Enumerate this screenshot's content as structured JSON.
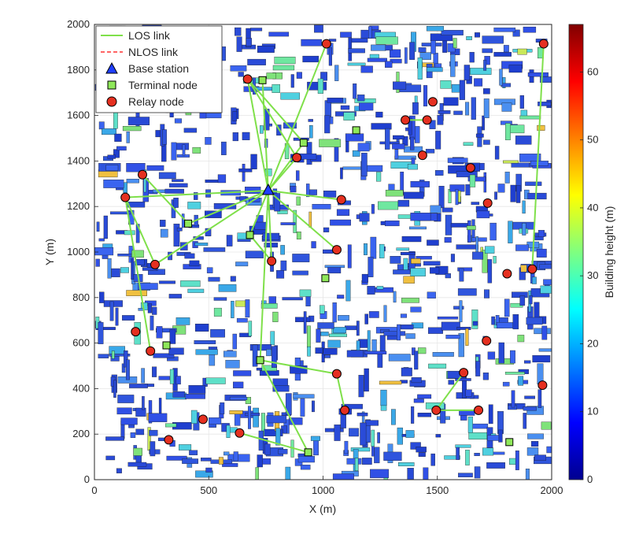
{
  "chart_data": {
    "type": "scatter",
    "xlabel": "X (m)",
    "ylabel": "Y (m)",
    "xlim": [
      0,
      2000
    ],
    "ylim": [
      0,
      2000
    ],
    "xticks": [
      "0",
      "500",
      "1000",
      "1500",
      "2000"
    ],
    "yticks": [
      "0",
      "200",
      "400",
      "600",
      "800",
      "1000",
      "1200",
      "1400",
      "1600",
      "1800",
      "2000"
    ],
    "grid": true,
    "legend_position": "top-left",
    "legend": {
      "los": "LOS link",
      "nlos": "NLOS link",
      "base": "Base station",
      "terminal": "Terminal node",
      "relay": "Relay node"
    },
    "colorbar": {
      "label": "Building height (m)",
      "ticks": [
        "0",
        "10",
        "20",
        "30",
        "40",
        "50",
        "60"
      ],
      "range": [
        0,
        67
      ],
      "colormap": "jet"
    },
    "colors": {
      "los": "#7fe04a",
      "nlos": "#ff3030",
      "base": "#1f3fff",
      "terminal": "#8fe85a",
      "relay": "#e53020"
    },
    "base_station": {
      "x": 760,
      "y": 1270
    },
    "terminal_nodes": [
      {
        "x": 735,
        "y": 1755
      },
      {
        "x": 915,
        "y": 1480
      },
      {
        "x": 1145,
        "y": 1535
      },
      {
        "x": 410,
        "y": 1125
      },
      {
        "x": 680,
        "y": 1075
      },
      {
        "x": 1010,
        "y": 885
      },
      {
        "x": 315,
        "y": 590
      },
      {
        "x": 725,
        "y": 525
      },
      {
        "x": 935,
        "y": 120
      },
      {
        "x": 1815,
        "y": 165
      }
    ],
    "relay_nodes": [
      {
        "x": 1015,
        "y": 1915
      },
      {
        "x": 670,
        "y": 1760
      },
      {
        "x": 1965,
        "y": 1915
      },
      {
        "x": 1480,
        "y": 1660
      },
      {
        "x": 1360,
        "y": 1580
      },
      {
        "x": 1455,
        "y": 1580
      },
      {
        "x": 885,
        "y": 1415
      },
      {
        "x": 1435,
        "y": 1425
      },
      {
        "x": 1645,
        "y": 1370
      },
      {
        "x": 210,
        "y": 1340
      },
      {
        "x": 135,
        "y": 1240
      },
      {
        "x": 1080,
        "y": 1230
      },
      {
        "x": 1720,
        "y": 1215
      },
      {
        "x": 1060,
        "y": 1010
      },
      {
        "x": 265,
        "y": 945
      },
      {
        "x": 775,
        "y": 960
      },
      {
        "x": 1915,
        "y": 925
      },
      {
        "x": 1805,
        "y": 905
      },
      {
        "x": 180,
        "y": 650
      },
      {
        "x": 1715,
        "y": 610
      },
      {
        "x": 245,
        "y": 565
      },
      {
        "x": 1615,
        "y": 470
      },
      {
        "x": 1060,
        "y": 465
      },
      {
        "x": 1960,
        "y": 415
      },
      {
        "x": 1095,
        "y": 305
      },
      {
        "x": 1495,
        "y": 305
      },
      {
        "x": 1680,
        "y": 305
      },
      {
        "x": 475,
        "y": 265
      },
      {
        "x": 325,
        "y": 175
      },
      {
        "x": 635,
        "y": 205
      }
    ],
    "los_links": [
      [
        [
          760,
          1270
        ],
        [
          735,
          1755
        ]
      ],
      [
        [
          760,
          1270
        ],
        [
          670,
          1760
        ]
      ],
      [
        [
          760,
          1270
        ],
        [
          1015,
          1915
        ]
      ],
      [
        [
          760,
          1270
        ],
        [
          915,
          1480
        ]
      ],
      [
        [
          760,
          1270
        ],
        [
          885,
          1415
        ]
      ],
      [
        [
          760,
          1270
        ],
        [
          135,
          1240
        ]
      ],
      [
        [
          760,
          1270
        ],
        [
          410,
          1125
        ]
      ],
      [
        [
          760,
          1270
        ],
        [
          265,
          945
        ]
      ],
      [
        [
          760,
          1270
        ],
        [
          680,
          1075
        ]
      ],
      [
        [
          760,
          1270
        ],
        [
          1080,
          1230
        ]
      ],
      [
        [
          760,
          1270
        ],
        [
          1060,
          1010
        ]
      ],
      [
        [
          760,
          1270
        ],
        [
          775,
          960
        ]
      ],
      [
        [
          760,
          1270
        ],
        [
          725,
          525
        ]
      ],
      [
        [
          670,
          1760
        ],
        [
          915,
          1480
        ]
      ],
      [
        [
          670,
          1760
        ],
        [
          885,
          1415
        ]
      ],
      [
        [
          210,
          1340
        ],
        [
          410,
          1125
        ]
      ],
      [
        [
          135,
          1240
        ],
        [
          265,
          945
        ]
      ],
      [
        [
          135,
          1240
        ],
        [
          245,
          565
        ]
      ],
      [
        [
          680,
          1075
        ],
        [
          775,
          960
        ]
      ],
      [
        [
          1360,
          1580
        ],
        [
          1455,
          1580
        ]
      ],
      [
        [
          1965,
          1915
        ],
        [
          1915,
          925
        ]
      ],
      [
        [
          725,
          525
        ],
        [
          1060,
          465
        ]
      ],
      [
        [
          1060,
          465
        ],
        [
          1095,
          305
        ]
      ],
      [
        [
          725,
          525
        ],
        [
          935,
          120
        ]
      ],
      [
        [
          635,
          205
        ],
        [
          935,
          120
        ]
      ],
      [
        [
          1495,
          305
        ],
        [
          1680,
          305
        ]
      ],
      [
        [
          1495,
          305
        ],
        [
          1615,
          470
        ]
      ]
    ]
  }
}
